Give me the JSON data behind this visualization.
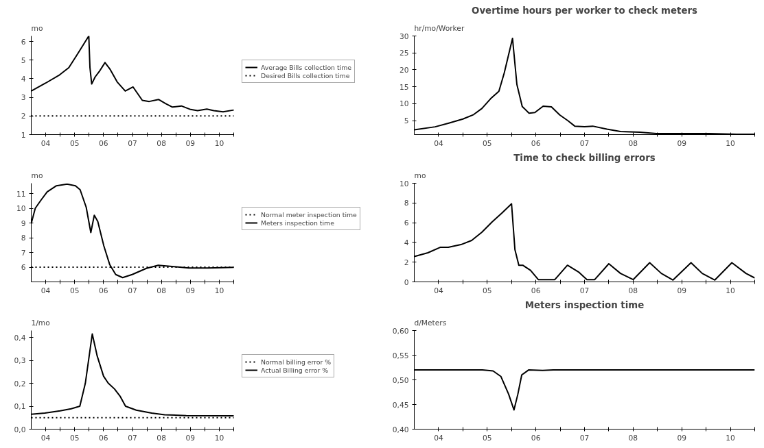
{
  "chart_data": [
    {
      "type": "line",
      "ylabel": "mo",
      "xlim": [
        3.5,
        10.5
      ],
      "ylim": [
        1,
        6.3
      ],
      "yticks": [
        1,
        2,
        3,
        4,
        5,
        6
      ],
      "xticks": [
        {
          "value": 4,
          "label": "04"
        },
        {
          "value": 4.5,
          "label": null
        },
        {
          "value": 5,
          "label": "05"
        },
        {
          "value": 5.5,
          "label": null
        },
        {
          "value": 6,
          "label": "06"
        },
        {
          "value": 6.5,
          "label": null
        },
        {
          "value": 7,
          "label": "07"
        },
        {
          "value": 7.5,
          "label": null
        },
        {
          "value": 8,
          "label": "08"
        },
        {
          "value": 8.5,
          "label": null
        },
        {
          "value": 9,
          "label": "09"
        },
        {
          "value": 9.5,
          "label": null
        },
        {
          "value": 10,
          "label": "10"
        },
        {
          "value": 10.5,
          "label": null
        }
      ],
      "legend": "right",
      "grid": false,
      "series": [
        {
          "name": "Average Bills collection time",
          "color": "#000000",
          "line_style": "solid",
          "x": [
            3.5,
            4.0,
            4.48,
            4.8,
            5.11,
            5.49,
            5.53,
            5.59,
            5.71,
            5.87,
            6.05,
            6.23,
            6.47,
            6.75,
            7.02,
            7.34,
            7.58,
            7.9,
            8.14,
            8.38,
            8.69,
            9.01,
            9.25,
            9.57,
            9.81,
            10.13,
            10.5
          ],
          "values": [
            3.34,
            3.77,
            4.21,
            4.6,
            5.35,
            6.3,
            4.6,
            3.72,
            4.1,
            4.43,
            4.87,
            4.5,
            3.83,
            3.34,
            3.56,
            2.84,
            2.78,
            2.89,
            2.67,
            2.48,
            2.54,
            2.35,
            2.29,
            2.37,
            2.29,
            2.22,
            2.32
          ]
        },
        {
          "name": "Desired Bills collection time",
          "color": "#000000",
          "line_style": "dotted",
          "x": [
            3.5,
            10.5
          ],
          "values": [
            2,
            2
          ]
        }
      ]
    },
    {
      "type": "line",
      "title": "Overtime hours per worker to check meters",
      "ylabel": "hr/mo/Worker",
      "xlim": [
        3.5,
        10.5
      ],
      "ylim": [
        0.9,
        30
      ],
      "yticks": [
        5,
        10,
        15,
        20,
        25,
        30
      ],
      "xticks": [
        {
          "value": 4,
          "label": "04"
        },
        {
          "value": 4.5,
          "label": null
        },
        {
          "value": 5,
          "label": "05"
        },
        {
          "value": 5.5,
          "label": null
        },
        {
          "value": 6,
          "label": "06"
        },
        {
          "value": 6.5,
          "label": null
        },
        {
          "value": 7,
          "label": "07"
        },
        {
          "value": 7.5,
          "label": null
        },
        {
          "value": 8,
          "label": "08"
        },
        {
          "value": 8.5,
          "label": null
        },
        {
          "value": 9,
          "label": "09"
        },
        {
          "value": 9.5,
          "label": null
        },
        {
          "value": 10,
          "label": "10"
        },
        {
          "value": 10.5,
          "label": null
        }
      ],
      "grid": false,
      "series": [
        {
          "color": "#000000",
          "line_style": "solid",
          "x": [
            3.5,
            3.93,
            4.21,
            4.5,
            4.72,
            4.89,
            5.07,
            5.24,
            5.35,
            5.52,
            5.61,
            5.72,
            5.86,
            5.98,
            6.15,
            6.32,
            6.49,
            6.66,
            6.8,
            7.0,
            7.17,
            7.46,
            7.74,
            8.14,
            8.48,
            9.56,
            10.13,
            10.5
          ],
          "values": [
            2.3,
            3.2,
            4.3,
            5.5,
            6.8,
            8.6,
            11.5,
            13.7,
            19.1,
            29.3,
            15.7,
            9.2,
            7.2,
            7.4,
            9.3,
            9.1,
            6.7,
            5.0,
            3.4,
            3.2,
            3.4,
            2.5,
            1.8,
            1.6,
            1.2,
            1.2,
            1.0,
            1.0
          ]
        }
      ]
    },
    {
      "type": "line",
      "ylabel": "mo",
      "xlim": [
        3.5,
        10.5
      ],
      "ylim": [
        5,
        11.7
      ],
      "yticks": [
        6,
        7,
        8,
        9,
        10,
        11
      ],
      "xticks": [
        {
          "value": 4,
          "label": "04"
        },
        {
          "value": 4.5,
          "label": null
        },
        {
          "value": 5,
          "label": "05"
        },
        {
          "value": 5.5,
          "label": null
        },
        {
          "value": 6,
          "label": "06"
        },
        {
          "value": 6.5,
          "label": null
        },
        {
          "value": 7,
          "label": "07"
        },
        {
          "value": 7.5,
          "label": null
        },
        {
          "value": 8,
          "label": "08"
        },
        {
          "value": 8.5,
          "label": null
        },
        {
          "value": 9,
          "label": "09"
        },
        {
          "value": 9.5,
          "label": null
        },
        {
          "value": 10,
          "label": "10"
        },
        {
          "value": 10.5,
          "label": null
        }
      ],
      "legend": "right",
      "grid": false,
      "series": [
        {
          "name": "Normal meter inspection time",
          "color": "#000000",
          "line_style": "dotted",
          "x": [
            3.5,
            10.5
          ],
          "values": [
            6,
            6
          ]
        },
        {
          "name": "Meters inspection time",
          "color": "#000000",
          "line_style": "solid",
          "x": [
            3.5,
            3.64,
            3.84,
            4.05,
            4.37,
            4.74,
            5.03,
            5.19,
            5.4,
            5.56,
            5.68,
            5.8,
            6.01,
            6.21,
            6.42,
            6.66,
            6.99,
            7.48,
            7.89,
            8.3,
            8.95,
            9.6,
            10.09,
            10.5
          ],
          "values": [
            8.97,
            10.0,
            10.56,
            11.11,
            11.53,
            11.64,
            11.53,
            11.26,
            10.07,
            8.35,
            9.53,
            9.11,
            7.44,
            6.19,
            5.5,
            5.29,
            5.5,
            5.92,
            6.13,
            6.06,
            5.94,
            5.94,
            5.97,
            5.99
          ]
        }
      ]
    },
    {
      "type": "line",
      "title": "Time to check billing errors",
      "ylabel": "mo",
      "xlim": [
        3.5,
        10.5
      ],
      "ylim": [
        0,
        10
      ],
      "yticks": [
        0,
        2,
        4,
        6,
        8,
        10
      ],
      "xticks": [
        {
          "value": 4,
          "label": "04"
        },
        {
          "value": 4.5,
          "label": null
        },
        {
          "value": 5,
          "label": "05"
        },
        {
          "value": 5.5,
          "label": null
        },
        {
          "value": 6,
          "label": "06"
        },
        {
          "value": 6.5,
          "label": null
        },
        {
          "value": 7,
          "label": "07"
        },
        {
          "value": 7.5,
          "label": null
        },
        {
          "value": 8,
          "label": "08"
        },
        {
          "value": 8.5,
          "label": null
        },
        {
          "value": 9,
          "label": "09"
        },
        {
          "value": 9.5,
          "label": null
        },
        {
          "value": 10,
          "label": "10"
        },
        {
          "value": 10.5,
          "label": null
        }
      ],
      "grid": false,
      "series": [
        {
          "color": "#000000",
          "line_style": "solid",
          "x": [
            3.5,
            3.78,
            4.04,
            4.2,
            4.46,
            4.68,
            4.89,
            5.1,
            5.31,
            5.5,
            5.57,
            5.65,
            5.73,
            5.89,
            6.05,
            6.39,
            6.65,
            6.89,
            7.05,
            7.21,
            7.5,
            7.74,
            8.0,
            8.34,
            8.58,
            8.82,
            9.19,
            9.42,
            9.68,
            10.03,
            10.32,
            10.5
          ],
          "values": [
            2.57,
            2.95,
            3.51,
            3.51,
            3.78,
            4.2,
            5.03,
            6.08,
            7.02,
            7.92,
            3.26,
            1.69,
            1.69,
            1.17,
            0.23,
            0.23,
            1.69,
            0.96,
            0.23,
            0.23,
            1.84,
            0.86,
            0.23,
            1.94,
            0.86,
            0.19,
            1.94,
            0.86,
            0.19,
            1.94,
            0.86,
            0.4
          ]
        }
      ]
    },
    {
      "type": "line",
      "ylabel": "1/mo",
      "xlim": [
        3.5,
        10.5
      ],
      "ylim": [
        0,
        0.43
      ],
      "yticks": [
        {
          "value": 0,
          "label": "0,0"
        },
        {
          "value": 0.1,
          "label": "0,1"
        },
        {
          "value": 0.2,
          "label": "0,2"
        },
        {
          "value": 0.3,
          "label": "0,3"
        },
        {
          "value": 0.4,
          "label": "0,4"
        }
      ],
      "xticks": [
        {
          "value": 4,
          "label": "04"
        },
        {
          "value": 4.5,
          "label": null
        },
        {
          "value": 5,
          "label": "05"
        },
        {
          "value": 5.5,
          "label": null
        },
        {
          "value": 6,
          "label": "06"
        },
        {
          "value": 6.5,
          "label": null
        },
        {
          "value": 7,
          "label": "07"
        },
        {
          "value": 7.5,
          "label": null
        },
        {
          "value": 8,
          "label": "08"
        },
        {
          "value": 8.5,
          "label": null
        },
        {
          "value": 9,
          "label": "09"
        },
        {
          "value": 9.5,
          "label": null
        },
        {
          "value": 10,
          "label": "10"
        },
        {
          "value": 10.5,
          "label": null
        }
      ],
      "legend": "right",
      "grid": false,
      "series": [
        {
          "name": "Normal billing error %",
          "color": "#000000",
          "line_style": "dotted",
          "x": [
            3.5,
            10.5
          ],
          "values": [
            0.05,
            0.05
          ]
        },
        {
          "name": "Actual Billing error %",
          "color": "#000000",
          "line_style": "solid",
          "x": [
            3.5,
            3.97,
            4.5,
            4.88,
            5.18,
            5.37,
            5.61,
            5.78,
            6.0,
            6.16,
            6.38,
            6.57,
            6.76,
            7.13,
            7.66,
            8.11,
            8.86,
            10.5
          ],
          "values": [
            0.065,
            0.07,
            0.08,
            0.089,
            0.1,
            0.2,
            0.415,
            0.319,
            0.231,
            0.201,
            0.175,
            0.144,
            0.1,
            0.083,
            0.07,
            0.063,
            0.059,
            0.058
          ]
        }
      ]
    },
    {
      "type": "line",
      "title": "Meters inspection time",
      "ylabel": "d/Meters",
      "xlim": [
        3.5,
        10.5
      ],
      "ylim": [
        0.4,
        0.6
      ],
      "yticks": [
        {
          "value": 0.4,
          "label": "0,40"
        },
        {
          "value": 0.45,
          "label": "0,45"
        },
        {
          "value": 0.5,
          "label": "0,50"
        },
        {
          "value": 0.55,
          "label": "0,55"
        },
        {
          "value": 0.6,
          "label": "0,60"
        }
      ],
      "xticks": [
        {
          "value": 4,
          "label": "04"
        },
        {
          "value": 4.5,
          "label": null
        },
        {
          "value": 5,
          "label": "05"
        },
        {
          "value": 5.5,
          "label": null
        },
        {
          "value": 6,
          "label": "06"
        },
        {
          "value": 6.5,
          "label": null
        },
        {
          "value": 7,
          "label": "07"
        },
        {
          "value": 7.5,
          "label": null
        },
        {
          "value": 8,
          "label": "08"
        },
        {
          "value": 8.5,
          "label": null
        },
        {
          "value": 9,
          "label": "09"
        },
        {
          "value": 9.5,
          "label": null
        },
        {
          "value": 10,
          "label": "10"
        },
        {
          "value": 10.5,
          "label": null
        }
      ],
      "grid": false,
      "series": [
        {
          "color": "#000000",
          "line_style": "solid",
          "x": [
            3.5,
            4.9,
            5.12,
            5.28,
            5.44,
            5.55,
            5.63,
            5.71,
            5.85,
            6.14,
            6.36,
            10.5
          ],
          "values": [
            0.52,
            0.52,
            0.518,
            0.507,
            0.471,
            0.439,
            0.471,
            0.51,
            0.52,
            0.519,
            0.52,
            0.52
          ]
        }
      ]
    }
  ]
}
